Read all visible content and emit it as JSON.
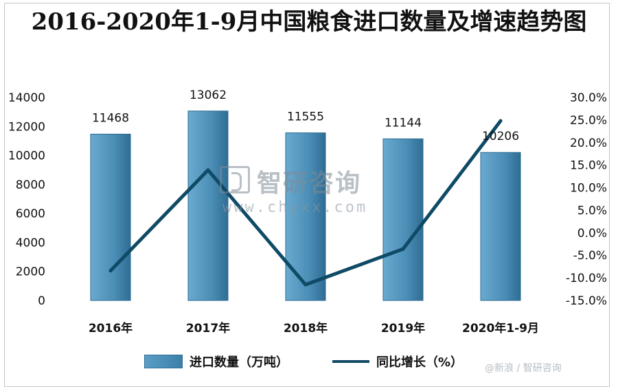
{
  "chart_data": {
    "type": "bar",
    "title": "2016-2020年1-9月中国粮食进口数量及增速趋势图",
    "categories": [
      "2016年",
      "2017年",
      "2018年",
      "2019年",
      "2020年1-9月"
    ],
    "series": [
      {
        "name": "进口数量（万吨）",
        "type": "bar",
        "axis": "left",
        "values": [
          11468,
          13062,
          11555,
          11144,
          10206
        ],
        "color": "#4a8db5"
      },
      {
        "name": "同比增长（%）",
        "type": "line",
        "axis": "right",
        "values": [
          -8.4,
          13.9,
          -11.5,
          -3.6,
          24.8
        ],
        "color": "#0f4a66"
      }
    ],
    "left_axis": {
      "ylim": [
        0,
        14000
      ],
      "ticks": [
        "0",
        "2000",
        "4000",
        "6000",
        "8000",
        "10000",
        "12000",
        "14000"
      ]
    },
    "right_axis": {
      "ylim": [
        -15,
        30
      ],
      "ticks": [
        "-15.0%",
        "-10.0%",
        "-5.0%",
        "0.0%",
        "5.0%",
        "10.0%",
        "15.0%",
        "20.0%",
        "25.0%",
        "30.0%"
      ]
    },
    "grid": false,
    "legend_position": "bottom"
  },
  "watermark": {
    "name": "智研咨询",
    "url": "www.chyxx.com",
    "icon": "chyxx-logo-icon"
  },
  "source_mark": "@新浪 / 智研咨询",
  "colors": {
    "bar": "#4a8db5",
    "line": "#0f4a66"
  }
}
